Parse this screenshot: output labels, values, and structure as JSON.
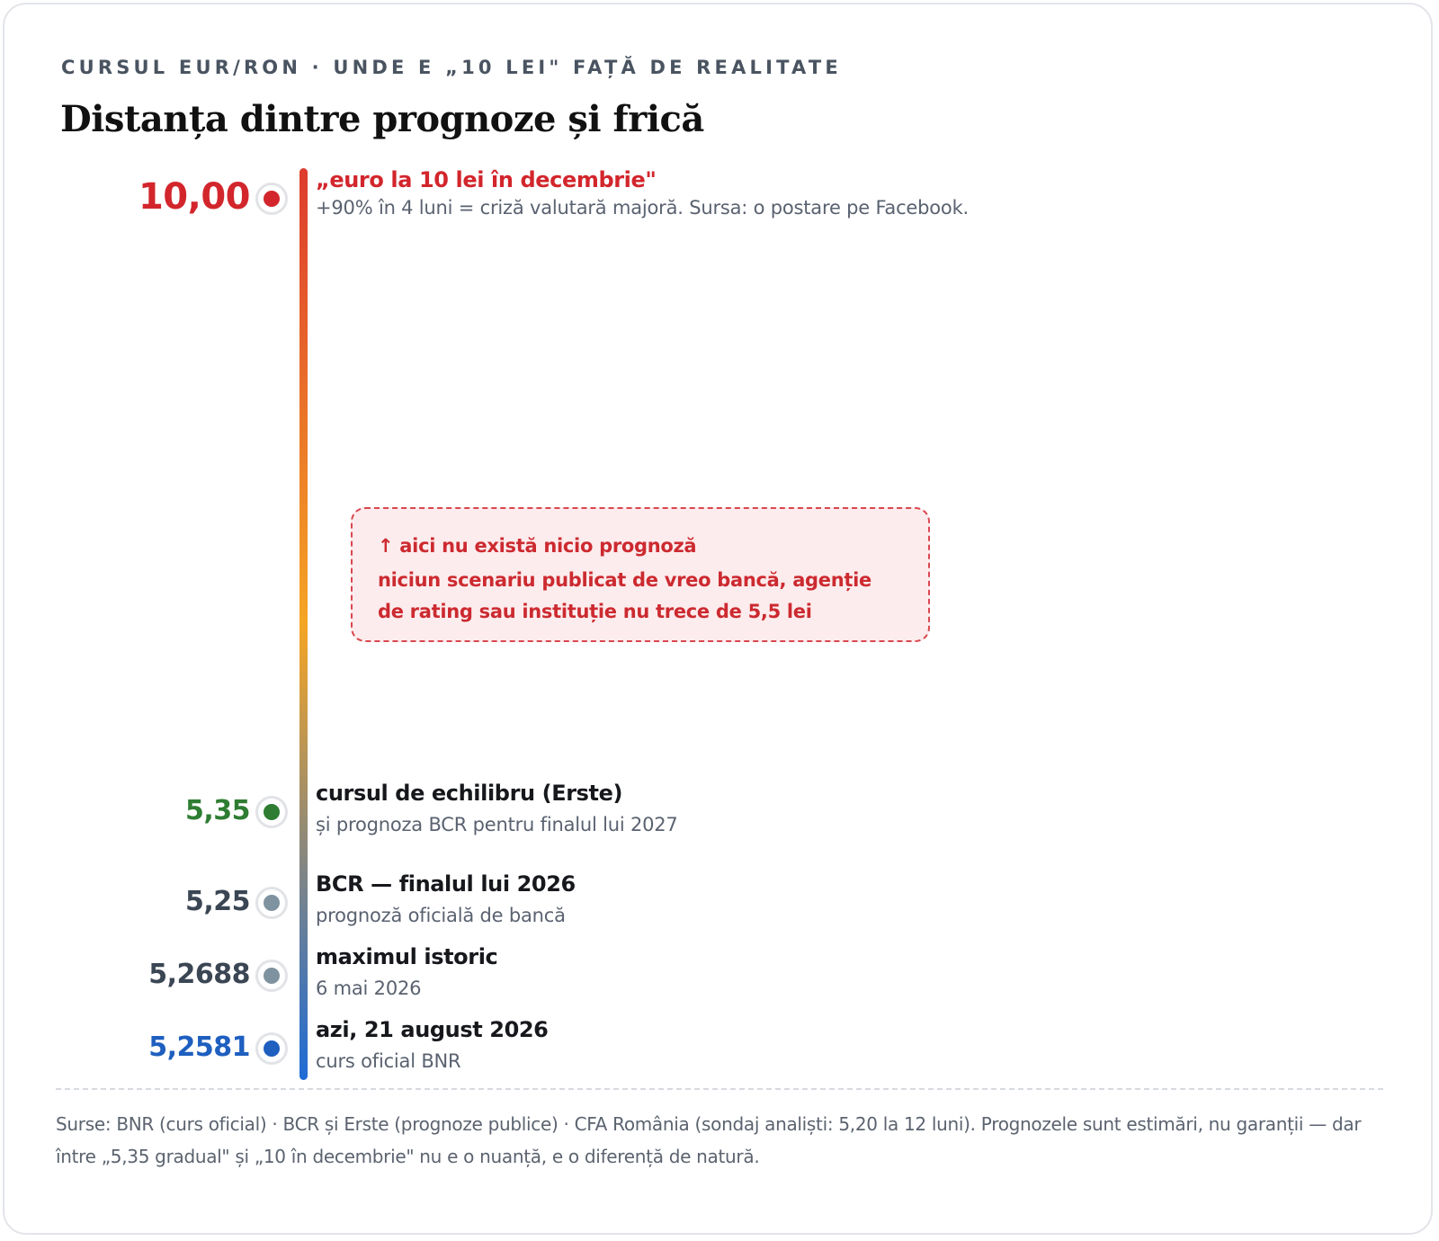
{
  "header": {
    "kicker": "CURSUL EUR/RON · UNDE E „10 LEI\" FAȚĂ DE REALITATE",
    "title": "Distanța dintre prognoze și frică"
  },
  "colors": {
    "alarm": "#d2262c",
    "equilibrium": "#2e7d32",
    "forecast": "#7f929f",
    "neutral": "#3b4654",
    "today": "#1e5fbf",
    "scale_top": "#dd3b2e",
    "scale_mid": "#f5a524",
    "scale_bottom": "#1e6bd6"
  },
  "chart_data": {
    "type": "scale",
    "unit": "lei",
    "points": [
      {
        "value": 10.0,
        "value_label": "10,00",
        "title": "„euro la 10 lei în decembrie\"",
        "subtitle": "+90% în 4 luni = criză valutară majoră. Sursa: o postare pe Facebook.",
        "tone": "alarm"
      },
      {
        "value": 5.35,
        "value_label": "5,35",
        "title": "cursul de echilibru (Erste)",
        "subtitle": "și prognoza BCR pentru finalul lui 2027",
        "tone": "equilibrium"
      },
      {
        "value": 5.25,
        "value_label": "5,25",
        "title": "BCR — finalul lui 2026",
        "subtitle": "prognoză oficială de bancă",
        "tone": "forecast"
      },
      {
        "value": 5.2688,
        "value_label": "5,2688",
        "title": "maximul istoric",
        "subtitle": "6 mai 2026",
        "tone": "forecast"
      },
      {
        "value": 5.2581,
        "value_label": "5,2581",
        "title": "azi, 21 august 2026",
        "subtitle": "curs oficial BNR",
        "tone": "today"
      }
    ],
    "annotation": {
      "headline": "↑ aici nu există nicio prognoză",
      "body": "niciun scenariu publicat de vreo bancă, agenție de rating sau instituție nu trece de 5,5 lei"
    }
  },
  "footer": {
    "sources": "Surse: BNR (curs oficial) · BCR și Erste (prognoze publice) · CFA România (sondaj analiști: 5,20 la 12 luni). Prognozele sunt estimări, nu garanții — dar între „5,35 gradual\" și „10 în decembrie\" nu e o nuanță, e o diferență de natură."
  }
}
